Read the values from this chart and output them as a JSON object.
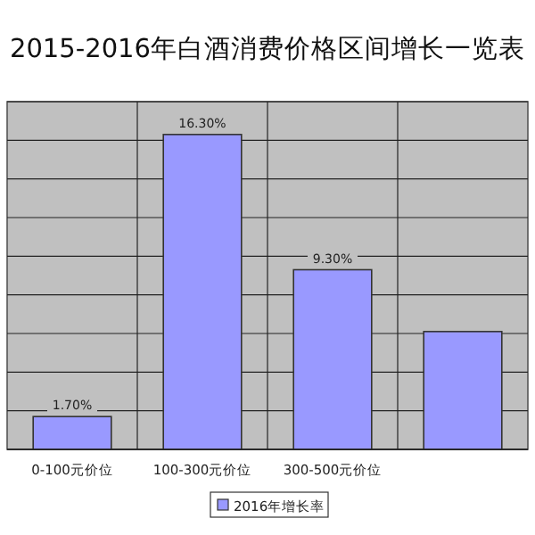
{
  "chart_data": {
    "type": "bar",
    "title": "2015-2016年白酒消费价格区间增长一览表",
    "categories": [
      "0-100元价位",
      "100-300元价位",
      "300-500元价位",
      null
    ],
    "series": [
      {
        "name": "2016年增长率",
        "color": "#9999ff",
        "values": [
          1.7,
          16.3,
          9.3,
          6.1
        ],
        "value_labels": [
          "1.70%",
          "16.30%",
          "9.30%",
          null
        ]
      }
    ],
    "ylim": [
      0,
      18
    ],
    "yticks": [
      {
        "value": 0,
        "label": null
      },
      {
        "value": 2,
        "label": null
      },
      {
        "value": 4,
        "label": null
      },
      {
        "value": 6,
        "label": null
      },
      {
        "value": 8,
        "label": null
      },
      {
        "value": 10,
        "label": null
      },
      {
        "value": 12,
        "label": null
      },
      {
        "value": 14,
        "label": null
      },
      {
        "value": 16,
        "label": null
      },
      {
        "value": 18,
        "label": null
      }
    ],
    "tick_labels": "x",
    "grid": true,
    "legend": "bottom"
  }
}
